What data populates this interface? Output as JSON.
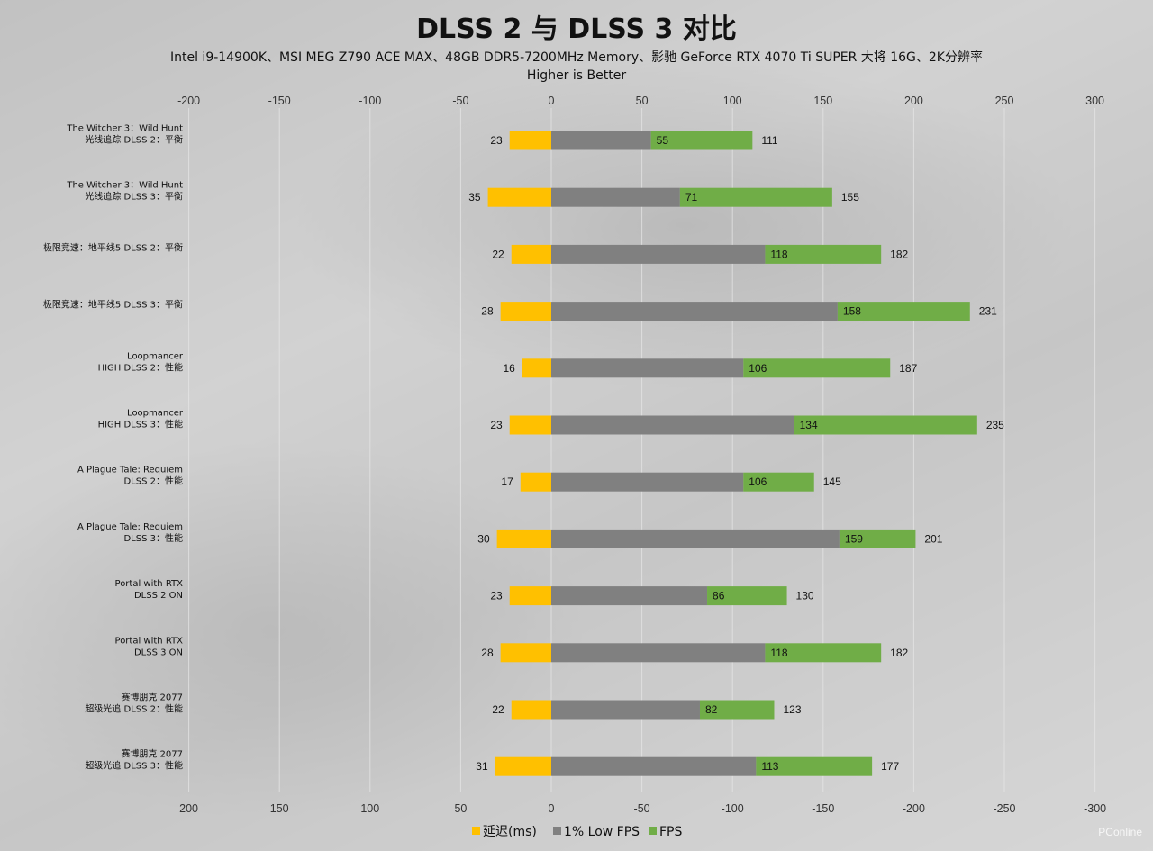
{
  "watermark": "PConline",
  "chart_data": {
    "type": "bar",
    "title": "DLSS 2 与 DLSS 3 对比",
    "subtitle": "Intel i9-14900K、MSI MEG Z790 ACE MAX、48GB DDR5-7200MHz Memory、影驰 GeForce RTX 4070 Ti SUPER 大将 16G、2K分辨率",
    "subtitle2": "Higher is Better",
    "xlim": [
      -200,
      300
    ],
    "top_ticks": [
      "-200",
      "-150",
      "-100",
      "-50",
      "0",
      "50",
      "100",
      "150",
      "200",
      "250",
      "300"
    ],
    "bottom_ticks": [
      "200",
      "150",
      "100",
      "50",
      "0",
      "-50",
      "-100",
      "-150",
      "-200",
      "-250",
      "-300"
    ],
    "categories": [
      [
        "The Witcher 3：Wild Hunt",
        "光线追踪 DLSS 2：平衡"
      ],
      [
        "The Witcher 3：Wild Hunt",
        "光线追踪 DLSS 3：平衡"
      ],
      [
        "极限竞速：地平线5 DLSS 2：平衡"
      ],
      [
        "极限竞速：地平线5 DLSS 3：平衡"
      ],
      [
        "Loopmancer",
        "HIGH DLSS 2：性能"
      ],
      [
        "Loopmancer",
        "HIGH DLSS 3：性能"
      ],
      [
        "A Plague Tale: Requiem",
        "DLSS 2：性能"
      ],
      [
        "A Plague Tale: Requiem",
        "DLSS 3：性能"
      ],
      [
        "Portal with RTX",
        "DLSS 2 ON"
      ],
      [
        "Portal with RTX",
        "DLSS 3 ON"
      ],
      [
        "赛博朋克 2077",
        "超级光追 DLSS 2：性能"
      ],
      [
        "赛博朋克 2077",
        "超级光追 DLSS 3：性能"
      ]
    ],
    "series": [
      {
        "name": "延迟(ms)",
        "color": "#FFC000",
        "values": [
          23,
          35,
          22,
          28,
          16,
          23,
          17,
          30,
          23,
          28,
          22,
          31
        ]
      },
      {
        "name": "1% Low FPS",
        "color": "#808080",
        "values": [
          55,
          71,
          118,
          158,
          106,
          134,
          106,
          159,
          86,
          118,
          82,
          113
        ]
      },
      {
        "name": "FPS",
        "color": "#70AD47",
        "values": [
          111,
          155,
          182,
          231,
          187,
          235,
          145,
          201,
          130,
          182,
          123,
          177
        ]
      }
    ]
  }
}
